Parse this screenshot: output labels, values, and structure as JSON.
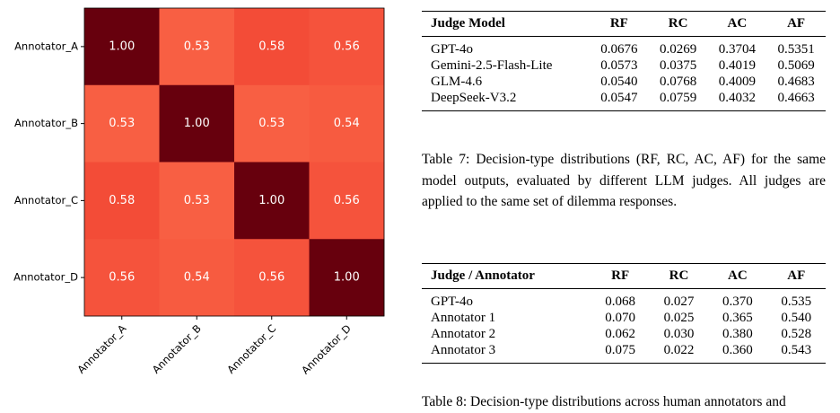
{
  "chart_data": {
    "type": "heatmap",
    "x_categories": [
      "Annotator_A",
      "Annotator_B",
      "Annotator_C",
      "Annotator_D"
    ],
    "y_categories": [
      "Annotator_A",
      "Annotator_B",
      "Annotator_C",
      "Annotator_D"
    ],
    "values": [
      [
        1.0,
        0.53,
        0.58,
        0.56
      ],
      [
        0.53,
        1.0,
        0.53,
        0.54
      ],
      [
        0.58,
        0.53,
        1.0,
        0.56
      ],
      [
        0.56,
        0.54,
        0.56,
        1.0
      ]
    ],
    "value_labels": [
      [
        "1.00",
        "0.53",
        "0.58",
        "0.56"
      ],
      [
        "0.53",
        "1.00",
        "0.53",
        "0.54"
      ],
      [
        "0.58",
        "0.53",
        "1.00",
        "0.56"
      ],
      [
        "0.56",
        "0.54",
        "0.56",
        "1.00"
      ]
    ],
    "colormap": "Reds"
  },
  "table7": {
    "header": [
      "Judge Model",
      "RF",
      "RC",
      "AC",
      "AF"
    ],
    "rows": [
      [
        "GPT-4o",
        "0.0676",
        "0.0269",
        "0.3704",
        "0.5351"
      ],
      [
        "Gemini-2.5-Flash-Lite",
        "0.0573",
        "0.0375",
        "0.4019",
        "0.5069"
      ],
      [
        "GLM-4.6",
        "0.0540",
        "0.0768",
        "0.4009",
        "0.4683"
      ],
      [
        "DeepSeek-V3.2",
        "0.0547",
        "0.0759",
        "0.4032",
        "0.4663"
      ]
    ],
    "caption": "Table 7: Decision-type distributions (RF, RC, AC, AF) for the same model outputs, evaluated by different LLM judges. All judges are applied to the same set of dilemma responses."
  },
  "table8": {
    "header": [
      "Judge / Annotator",
      "RF",
      "RC",
      "AC",
      "AF"
    ],
    "rows": [
      [
        "GPT-4o",
        "0.068",
        "0.027",
        "0.370",
        "0.535"
      ],
      [
        "Annotator 1",
        "0.070",
        "0.025",
        "0.365",
        "0.540"
      ],
      [
        "Annotator 2",
        "0.062",
        "0.030",
        "0.380",
        "0.528"
      ],
      [
        "Annotator 3",
        "0.075",
        "0.022",
        "0.360",
        "0.543"
      ]
    ],
    "caption": "Table 8: Decision-type distributions across human annotators and"
  }
}
